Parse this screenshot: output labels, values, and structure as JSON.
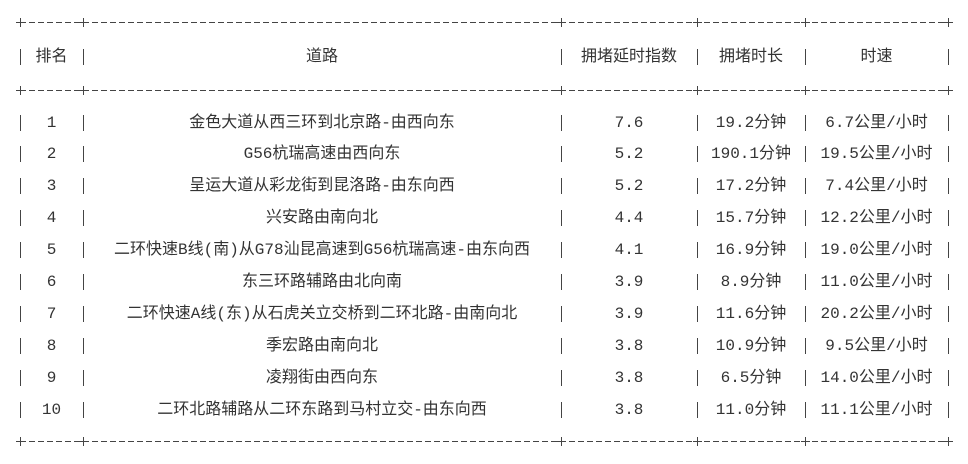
{
  "table": {
    "headers": [
      "排名",
      "道路",
      "拥堵延时指数",
      "拥堵时长",
      "时速"
    ],
    "rows": [
      [
        "1",
        "金色大道从西三环到北京路-由西向东",
        "7.6",
        "19.2分钟",
        "6.7公里/小时"
      ],
      [
        "2",
        "G56杭瑞高速由西向东",
        "5.2",
        "190.1分钟",
        "19.5公里/小时"
      ],
      [
        "3",
        "呈运大道从彩龙街到昆洛路-由东向西",
        "5.2",
        "17.2分钟",
        "7.4公里/小时"
      ],
      [
        "4",
        "兴安路由南向北",
        "4.4",
        "15.7分钟",
        "12.2公里/小时"
      ],
      [
        "5",
        "二环快速B线(南)从G78汕昆高速到G56杭瑞高速-由东向西",
        "4.1",
        "16.9分钟",
        "19.0公里/小时"
      ],
      [
        "6",
        "东三环路辅路由北向南",
        "3.9",
        "8.9分钟",
        "11.0公里/小时"
      ],
      [
        "7",
        "二环快速A线(东)从石虎关立交桥到二环北路-由南向北",
        "3.9",
        "11.6分钟",
        "20.2公里/小时"
      ],
      [
        "8",
        "季宏路由南向北",
        "3.8",
        "10.9分钟",
        "9.5公里/小时"
      ],
      [
        "9",
        "凌翔街由西向东",
        "3.8",
        "6.5分钟",
        "14.0公里/小时"
      ],
      [
        "10",
        "二环北路辅路从二环东路到马村立交-由东向西",
        "3.8",
        "11.0分钟",
        "11.1公里/小时"
      ]
    ]
  }
}
